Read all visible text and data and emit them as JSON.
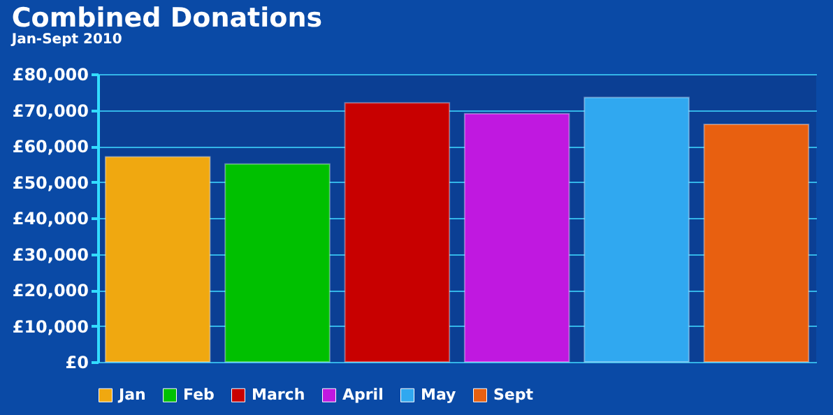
{
  "chart_data": {
    "type": "bar",
    "title": "Combined Donations",
    "subtitle": "Jan-Sept 2010",
    "categories": [
      null,
      null,
      null,
      null,
      null,
      null
    ],
    "series": [
      {
        "name": "Jan",
        "color": "#f0a810",
        "values": [
          57000,
          null,
          null,
          null,
          null,
          null
        ]
      },
      {
        "name": "Feb",
        "color": "#00c000",
        "values": [
          null,
          55000,
          null,
          null,
          null,
          null
        ]
      },
      {
        "name": "March",
        "color": "#c80000",
        "values": [
          null,
          null,
          72000,
          null,
          null,
          null
        ]
      },
      {
        "name": "April",
        "color": "#c018e0",
        "values": [
          null,
          null,
          null,
          69000,
          null,
          null
        ]
      },
      {
        "name": "May",
        "color": "#30a8f0",
        "values": [
          null,
          null,
          null,
          null,
          73500,
          null
        ]
      },
      {
        "name": "Sept",
        "color": "#e86010",
        "values": [
          null,
          null,
          null,
          null,
          null,
          66000
        ]
      }
    ],
    "ylim": [
      0,
      80000
    ],
    "yticks": [
      {
        "value": 0,
        "label": "£0"
      },
      {
        "value": 10000,
        "label": "£10,000"
      },
      {
        "value": 20000,
        "label": "£20,000"
      },
      {
        "value": 30000,
        "label": "£30,000"
      },
      {
        "value": 40000,
        "label": "£40,000"
      },
      {
        "value": 50000,
        "label": "£50,000"
      },
      {
        "value": 60000,
        "label": "£60,000"
      },
      {
        "value": 70000,
        "label": "£70,000"
      },
      {
        "value": 80000,
        "label": "£80,000"
      }
    ],
    "grid": "y",
    "legend": "bottom",
    "tick_labels": "y"
  }
}
